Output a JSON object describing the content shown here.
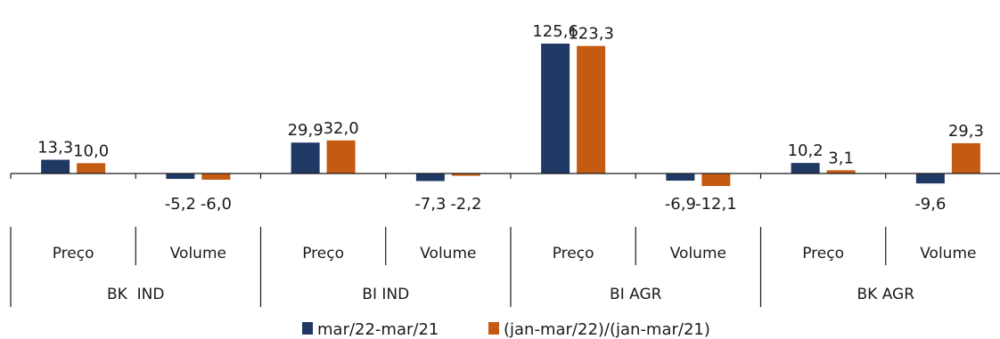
{
  "chart_data": {
    "type": "bar",
    "categories": [
      {
        "group": "BK  IND",
        "sub": "Preço"
      },
      {
        "group": "BK  IND",
        "sub": "Volume"
      },
      {
        "group": "BI IND",
        "sub": "Preço"
      },
      {
        "group": "BI IND",
        "sub": "Volume"
      },
      {
        "group": "BI AGR",
        "sub": "Preço"
      },
      {
        "group": "BI AGR",
        "sub": "Volume"
      },
      {
        "group": "BK AGR",
        "sub": "Preço"
      },
      {
        "group": "BK AGR",
        "sub": "Volume"
      }
    ],
    "groups": [
      "BK  IND",
      "BI IND",
      "BI AGR",
      "BK AGR"
    ],
    "series": [
      {
        "name": "mar/22-mar/21",
        "color": "#203864",
        "values": [
          13.3,
          -5.2,
          29.9,
          -7.3,
          125.6,
          -6.9,
          10.2,
          -9.6
        ],
        "labels": [
          "13,3",
          "-5,2",
          "29,9",
          "-7,3",
          "125,6",
          "-6,9",
          "10,2",
          "-9,6"
        ]
      },
      {
        "name": "(jan-mar/22)/(jan-mar/21)",
        "color": "#c55a11",
        "values": [
          10.0,
          -6.0,
          32.0,
          -2.2,
          123.3,
          -12.1,
          3.1,
          29.3
        ],
        "labels": [
          "10,0",
          "-6,0",
          "32,0",
          "-2,2",
          "123,3",
          "-12,1",
          "3,1",
          "29,3"
        ]
      }
    ],
    "xlabel": "",
    "ylabel": "",
    "ylim": [
      -14,
      130
    ],
    "grid": false,
    "legend": "bottom-center"
  }
}
